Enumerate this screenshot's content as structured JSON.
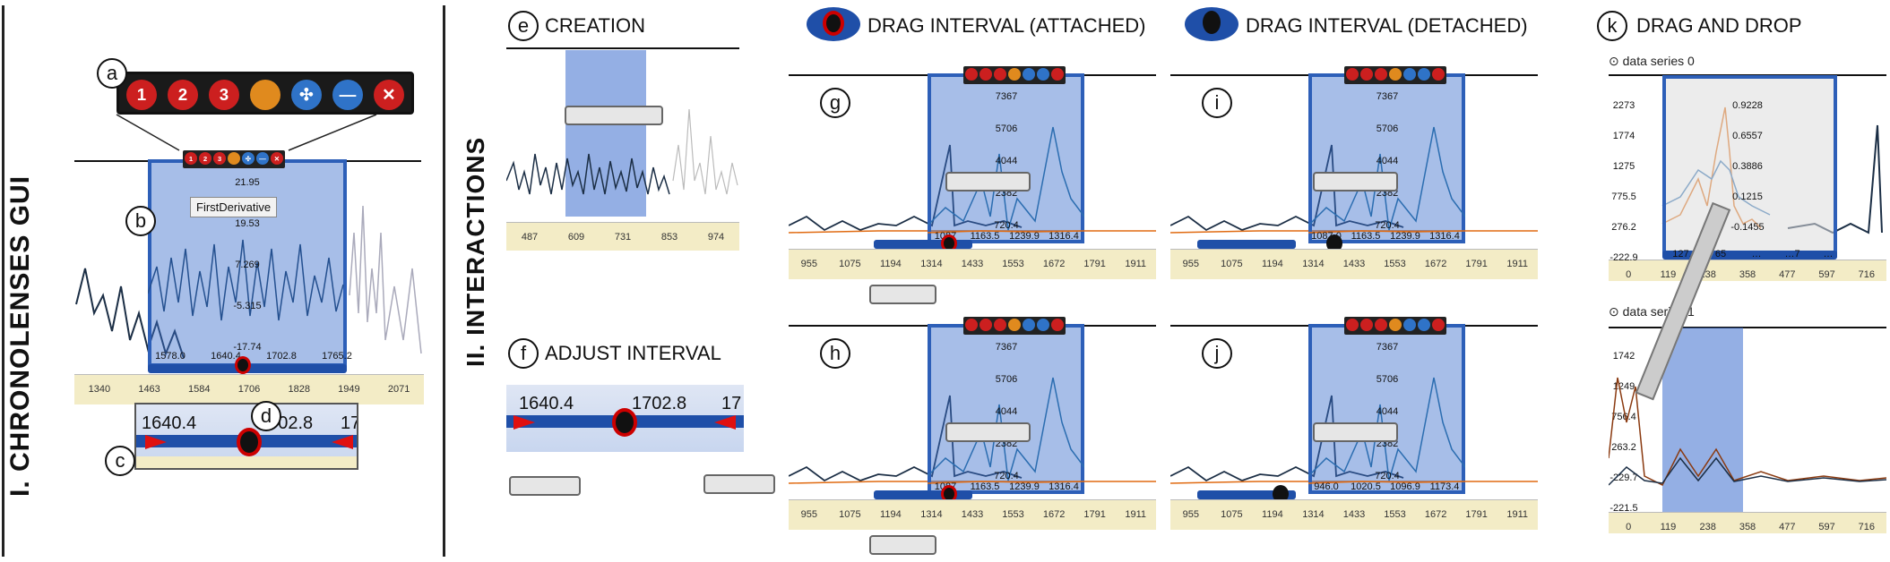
{
  "section1": {
    "title": "I. CHRONOLENSES GUI"
  },
  "section2": {
    "title": "II. INTERACTIONS"
  },
  "labels": {
    "a": "a",
    "b": "b",
    "c": "c",
    "d": "d",
    "e": "e",
    "f": "f",
    "g": "g",
    "h": "h",
    "i": "i",
    "j": "j",
    "k": "k"
  },
  "titles": {
    "creation": "CREATION",
    "adjust": "ADJUST INTERVAL",
    "attached": "DRAG INTERVAL (ATTACHED)",
    "detached": "DRAG INTERVAL (DETACHED)",
    "dragdrop": "DRAG AND DROP"
  },
  "toolbar_items": [
    {
      "glyph": "1",
      "color": "#cc1f1f"
    },
    {
      "glyph": "2",
      "color": "#cc1f1f"
    },
    {
      "glyph": "3",
      "color": "#cc1f1f"
    },
    {
      "glyph": "",
      "color": "#e08a1e"
    },
    {
      "glyph": "✣",
      "color": "#2f73c8"
    },
    {
      "glyph": "—",
      "color": "#2f73c8"
    },
    {
      "glyph": "✕",
      "color": "#cc1f1f"
    }
  ],
  "tooltip": "FirstDerivative",
  "gui": {
    "lens_values": [
      "21.95",
      "19.53",
      "7.269",
      "-5.315",
      "-17.74"
    ],
    "interval_ticks": [
      "1578.0",
      "1640.4",
      "1702.8",
      "1765.2"
    ],
    "axis_ticks": [
      "1340",
      "1463",
      "1584",
      "1706",
      "1828",
      "1949",
      "2071"
    ],
    "zoom_values": [
      "1640.4",
      "1702.8",
      "17"
    ]
  },
  "creation": {
    "axis_ticks": [
      "487",
      "609",
      "731",
      "853",
      "974"
    ]
  },
  "adjust": {
    "values": [
      "1640.4",
      "1702.8",
      "17"
    ]
  },
  "drag_axis": [
    "955",
    "1075",
    "1194",
    "1314",
    "1433",
    "1553",
    "1672",
    "1791",
    "1911"
  ],
  "drag_lens_values": [
    "7367",
    "5706",
    "4044",
    "2382",
    "720.4"
  ],
  "interval_g": [
    "1087",
    "1163.5",
    "1239.9",
    "1316.4"
  ],
  "interval_i": [
    "1087.0",
    "1163.5",
    "1239.9",
    "1316.4"
  ],
  "interval_h": [
    "1087",
    "1163.5",
    "1239.9",
    "1316.4"
  ],
  "interval_j": [
    "946.0",
    "1020.5",
    "1096.9",
    "1173.4"
  ],
  "dnd": {
    "series0": "data series 0",
    "series1": "data series 1",
    "s0_y": [
      "2273",
      "1774",
      "1275",
      "775.5",
      "276.2",
      "-222.9"
    ],
    "s0_lens": [
      "0.9228",
      "0.6557",
      "0.3886",
      "0.1215",
      "-0.1455"
    ],
    "s0_interval": [
      "127.0",
      "65",
      "…",
      "…7",
      "…"
    ],
    "axis": [
      "0",
      "119",
      "238",
      "358",
      "477",
      "597",
      "716"
    ],
    "s1_y": [
      "1742",
      "1249",
      "756.4",
      "263.2",
      "-229.7",
      "-221.5"
    ]
  }
}
